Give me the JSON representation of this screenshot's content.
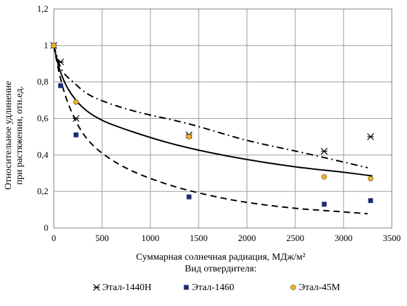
{
  "chart_data": {
    "type": "scatter",
    "title": "",
    "xlabel": "Суммарная солнечная радиация, МДж/м²",
    "ylabel_line1": "Относительное удлинение",
    "ylabel_line2": "при растяжении, отн.ед.",
    "legend_title": "Вид отвердителя:",
    "xlim": [
      0,
      3500
    ],
    "ylim": [
      0,
      1.2
    ],
    "grid": true,
    "legend_position": "bottom",
    "x_ticks": [
      "0",
      "500",
      "1000",
      "1500",
      "2000",
      "2500",
      "3000",
      "3500"
    ],
    "y_ticks": [
      "0",
      "0,2",
      "0,4",
      "0,6",
      "0,8",
      "1",
      "1,2"
    ],
    "series": [
      {
        "name": "Этал-1440Н",
        "marker": "asterisk",
        "color": "#000000",
        "line_style": "dashdot",
        "points": [
          [
            0,
            1.0
          ],
          [
            70,
            0.91
          ],
          [
            230,
            0.6
          ],
          [
            1400,
            0.51
          ],
          [
            2800,
            0.42
          ],
          [
            3280,
            0.5
          ]
        ],
        "trend": [
          [
            0,
            1.0
          ],
          [
            80,
            0.87
          ],
          [
            200,
            0.8
          ],
          [
            400,
            0.72
          ],
          [
            800,
            0.645
          ],
          [
            1400,
            0.57
          ],
          [
            2000,
            0.48
          ],
          [
            2600,
            0.41
          ],
          [
            3250,
            0.33
          ]
        ]
      },
      {
        "name": "Этал-1460",
        "marker": "square",
        "color": "#1f2a6b",
        "line_style": "dashed",
        "points": [
          [
            0,
            1.0
          ],
          [
            70,
            0.78
          ],
          [
            230,
            0.51
          ],
          [
            1400,
            0.17
          ],
          [
            2800,
            0.13
          ],
          [
            3280,
            0.15
          ]
        ],
        "trend": [
          [
            0,
            1.0
          ],
          [
            60,
            0.84
          ],
          [
            150,
            0.68
          ],
          [
            300,
            0.52
          ],
          [
            500,
            0.41
          ],
          [
            800,
            0.315
          ],
          [
            1200,
            0.235
          ],
          [
            1600,
            0.18
          ],
          [
            2000,
            0.14
          ],
          [
            2500,
            0.108
          ],
          [
            3000,
            0.088
          ],
          [
            3250,
            0.078
          ]
        ]
      },
      {
        "name": "Этал-45М",
        "marker": "circle",
        "color": "#f0b429",
        "line_style": "solid",
        "points": [
          [
            0,
            1.0
          ],
          [
            230,
            0.69
          ],
          [
            1400,
            0.5
          ],
          [
            2800,
            0.28
          ],
          [
            3280,
            0.27
          ]
        ],
        "trend": [
          [
            0,
            1.0
          ],
          [
            60,
            0.87
          ],
          [
            150,
            0.76
          ],
          [
            300,
            0.66
          ],
          [
            500,
            0.59
          ],
          [
            800,
            0.53
          ],
          [
            1200,
            0.465
          ],
          [
            1600,
            0.415
          ],
          [
            2000,
            0.375
          ],
          [
            2500,
            0.335
          ],
          [
            3000,
            0.305
          ],
          [
            3300,
            0.285
          ]
        ]
      }
    ]
  }
}
